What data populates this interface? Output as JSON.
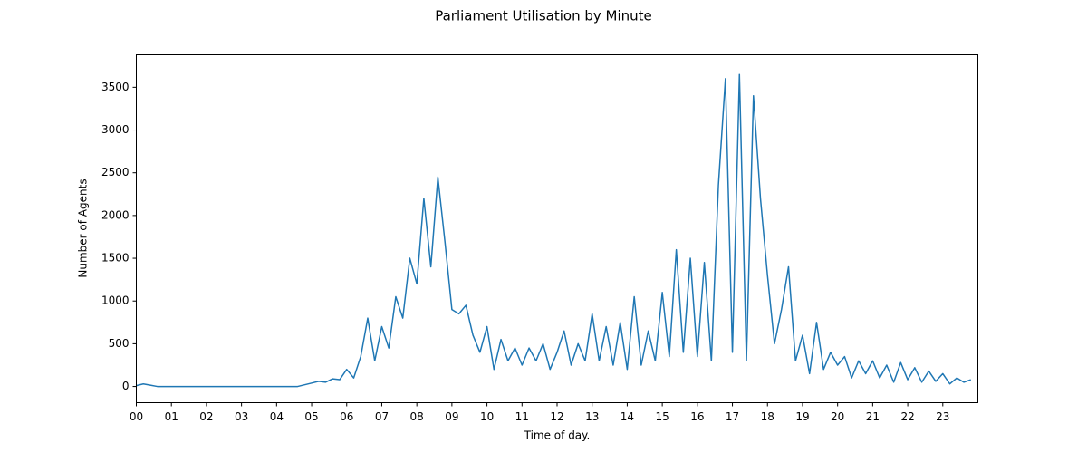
{
  "chart_data": {
    "type": "line",
    "title": "Parliament Utilisation by Minute",
    "x_label": "Time of day.",
    "y_label": "Number of Agents",
    "x": [
      0,
      0.2,
      0.4,
      0.6,
      0.8,
      1,
      1.2,
      1.4,
      1.6,
      1.8,
      2,
      2.2,
      2.4,
      2.6,
      2.8,
      3,
      3.2,
      3.4,
      3.6,
      3.8,
      4,
      4.2,
      4.4,
      4.6,
      4.8,
      5,
      5.2,
      5.4,
      5.6,
      5.8,
      6,
      6.2,
      6.4,
      6.6,
      6.8,
      7,
      7.2,
      7.4,
      7.6,
      7.8,
      8,
      8.2,
      8.4,
      8.6,
      8.8,
      9,
      9.2,
      9.4,
      9.6,
      9.8,
      10,
      10.2,
      10.4,
      10.6,
      10.8,
      11,
      11.2,
      11.4,
      11.6,
      11.8,
      12,
      12.2,
      12.4,
      12.6,
      12.8,
      13,
      13.2,
      13.4,
      13.6,
      13.8,
      14,
      14.2,
      14.4,
      14.6,
      14.8,
      15,
      15.2,
      15.4,
      15.6,
      15.8,
      16,
      16.2,
      16.4,
      16.6,
      16.8,
      17,
      17.2,
      17.4,
      17.6,
      17.8,
      18,
      18.2,
      18.4,
      18.6,
      18.8,
      19,
      19.2,
      19.4,
      19.6,
      19.8,
      20,
      20.2,
      20.4,
      20.6,
      20.8,
      21,
      21.2,
      21.4,
      21.6,
      21.8,
      22,
      22.2,
      22.4,
      22.6,
      22.8,
      23,
      23.2,
      23.4,
      23.6,
      23.8
    ],
    "series": [
      {
        "name": "Agents",
        "color": "#1f77b4",
        "values": [
          10,
          30,
          15,
          0,
          0,
          0,
          0,
          0,
          0,
          0,
          0,
          0,
          0,
          0,
          0,
          0,
          0,
          0,
          0,
          0,
          0,
          0,
          0,
          0,
          20,
          40,
          60,
          50,
          90,
          80,
          200,
          100,
          350,
          800,
          300,
          700,
          450,
          1050,
          800,
          1500,
          1200,
          2200,
          1400,
          2450,
          1700,
          900,
          850,
          950,
          600,
          400,
          700,
          200,
          550,
          300,
          450,
          250,
          450,
          300,
          500,
          200,
          400,
          650,
          250,
          500,
          300,
          850,
          300,
          700,
          250,
          750,
          200,
          1050,
          250,
          650,
          300,
          1100,
          350,
          1600,
          400,
          1500,
          350,
          1450,
          300,
          2350,
          3600,
          400,
          3650,
          300,
          3400,
          2200,
          1300,
          500,
          900,
          1400,
          300,
          600,
          150,
          750,
          200,
          400,
          250,
          350,
          100,
          300,
          150,
          300,
          100,
          250,
          50,
          280,
          80,
          220,
          50,
          180,
          60,
          150,
          30,
          100,
          50,
          80
        ]
      }
    ],
    "xlim": [
      0,
      24
    ],
    "ylim": [
      -190,
      3880
    ],
    "xticks": [
      {
        "value": 0,
        "label": "00"
      },
      {
        "value": 1,
        "label": "01"
      },
      {
        "value": 2,
        "label": "02"
      },
      {
        "value": 3,
        "label": "03"
      },
      {
        "value": 4,
        "label": "04"
      },
      {
        "value": 5,
        "label": "05"
      },
      {
        "value": 6,
        "label": "06"
      },
      {
        "value": 7,
        "label": "07"
      },
      {
        "value": 8,
        "label": "08"
      },
      {
        "value": 9,
        "label": "09"
      },
      {
        "value": 10,
        "label": "10"
      },
      {
        "value": 11,
        "label": "11"
      },
      {
        "value": 12,
        "label": "12"
      },
      {
        "value": 13,
        "label": "13"
      },
      {
        "value": 14,
        "label": "14"
      },
      {
        "value": 15,
        "label": "15"
      },
      {
        "value": 16,
        "label": "16"
      },
      {
        "value": 17,
        "label": "17"
      },
      {
        "value": 18,
        "label": "18"
      },
      {
        "value": 19,
        "label": "19"
      },
      {
        "value": 20,
        "label": "20"
      },
      {
        "value": 21,
        "label": "21"
      },
      {
        "value": 22,
        "label": "22"
      },
      {
        "value": 23,
        "label": "23"
      }
    ],
    "yticks": [
      0,
      500,
      1000,
      1500,
      2000,
      2500,
      3000,
      3500
    ],
    "grid": false
  }
}
